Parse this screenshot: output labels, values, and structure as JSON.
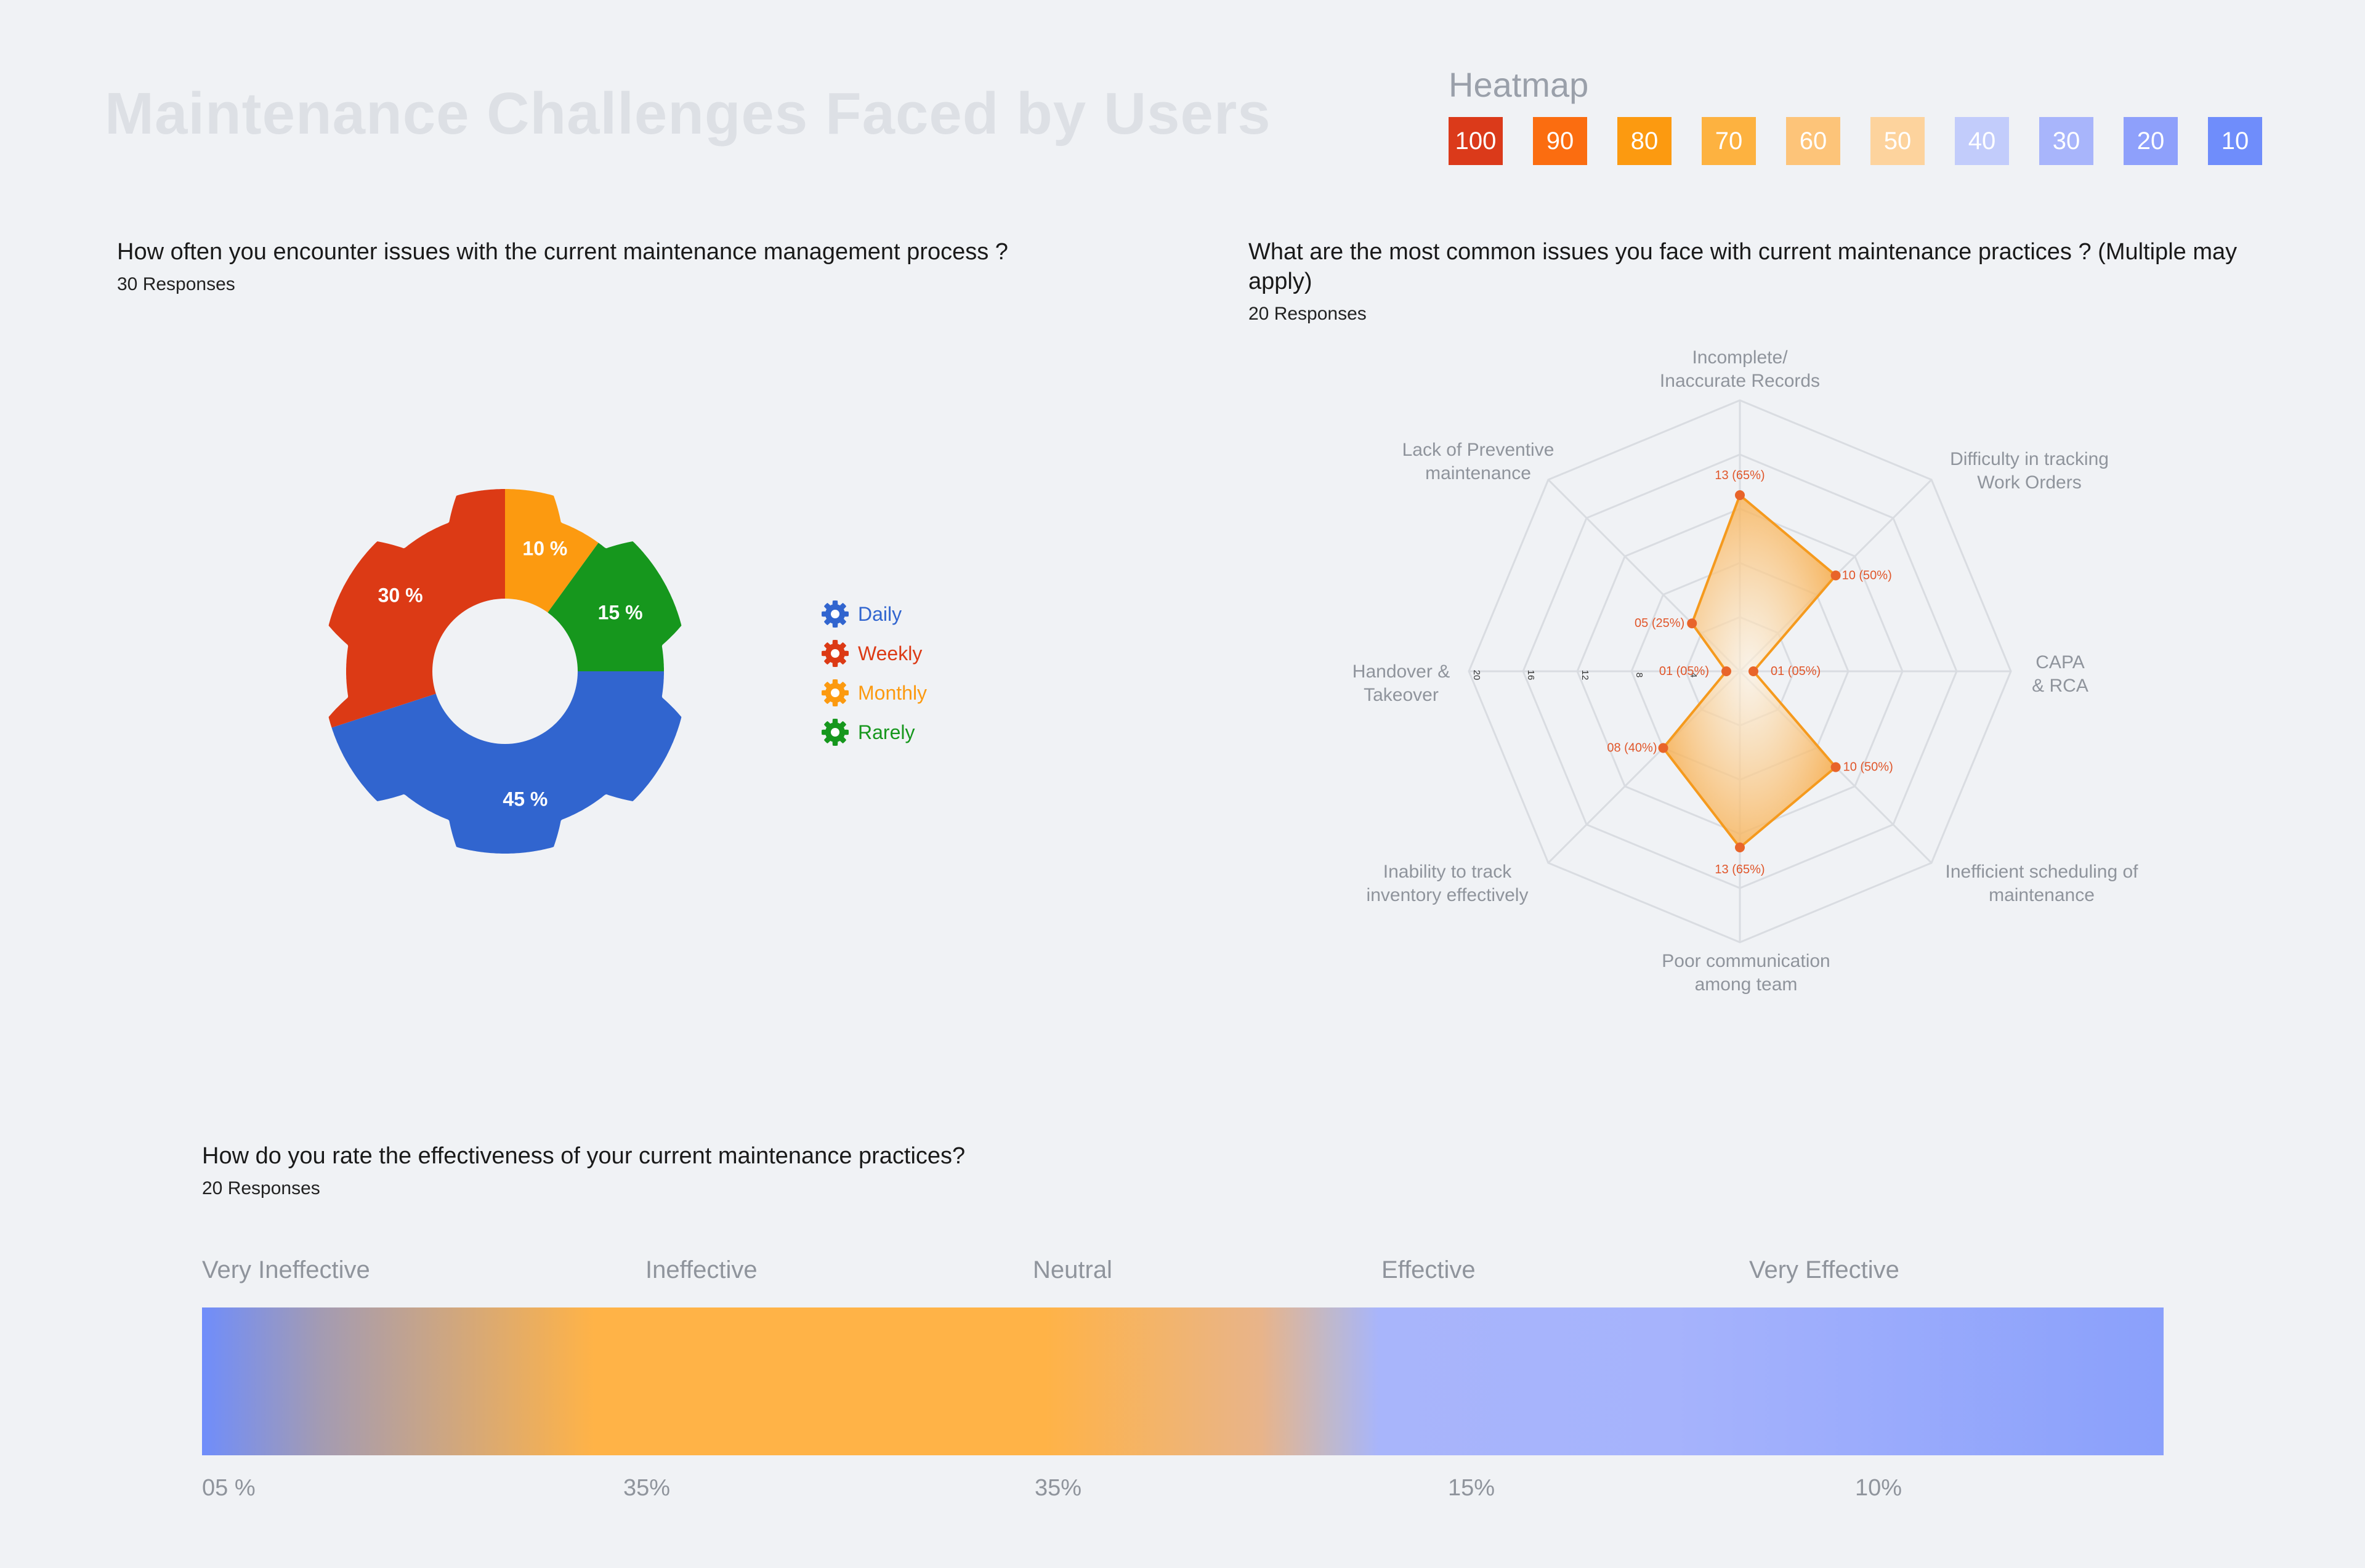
{
  "page": {
    "title": "Maintenance Challenges Faced by Users"
  },
  "heatmap": {
    "label": "Heatmap",
    "cells": [
      {
        "value": "100",
        "color": "#db3a1a"
      },
      {
        "value": "90",
        "color": "#fb6d10"
      },
      {
        "value": "80",
        "color": "#fc9a10"
      },
      {
        "value": "70",
        "color": "#fdb240"
      },
      {
        "value": "60",
        "color": "#fdc479"
      },
      {
        "value": "50",
        "color": "#fdd39d"
      },
      {
        "value": "40",
        "color": "#c2ccfb"
      },
      {
        "value": "30",
        "color": "#a8b5fb"
      },
      {
        "value": "20",
        "color": "#8ea0fb"
      },
      {
        "value": "10",
        "color": "#6f8dfb"
      }
    ]
  },
  "q1": {
    "title": "How often you encounter issues with the current maintenance management process ?",
    "responses": "30 Responses"
  },
  "q2": {
    "title": "What are the most common issues you face with current maintenance practices ? (Multiple may apply)",
    "responses": "20 Responses"
  },
  "q3": {
    "title": "How do you rate the effectiveness of your current maintenance practices?",
    "responses": "20 Responses"
  },
  "chart_data": [
    {
      "type": "pie",
      "style": "gear donut",
      "categories": [
        "Daily",
        "Weekly",
        "Monthly",
        "Rarely"
      ],
      "values": [
        45,
        30,
        10,
        15
      ],
      "labels": [
        "45 %",
        "30 %",
        "10 %",
        "15 %"
      ],
      "colors": [
        "#3165cf",
        "#dc3a15",
        "#fc9a10",
        "#16971d"
      ],
      "legend": "right"
    },
    {
      "type": "radar",
      "axes": [
        "Incomplete/ Inaccurate Records",
        "Difficulty in tracking Work Orders",
        "CAPA & RCA",
        "Inefficient scheduling of maintenance",
        "Poor communication among team",
        "Inability to track inventory effectively",
        "Handover & Takeover",
        "Lack of Preventive maintenance"
      ],
      "axis_label_lines": [
        [
          "Incomplete/",
          "Inaccurate Records"
        ],
        [
          "Difficulty in tracking",
          "Work Orders"
        ],
        [
          "CAPA",
          "&  RCA"
        ],
        [
          "Inefficient scheduling of",
          "maintenance"
        ],
        [
          "Poor communication",
          "among team"
        ],
        [
          "Inability to track",
          "inventory effectively"
        ],
        [
          "Handover &",
          "Takeover"
        ],
        [
          "Lack of Preventive",
          "maintenance"
        ]
      ],
      "values": [
        13,
        10,
        1,
        10,
        13,
        8,
        1,
        5
      ],
      "value_labels": [
        "13 (65%)",
        "10 (50%)",
        "01 (05%)",
        "10 (50%)",
        "13 (65%)",
        "08 (40%)",
        "01 (05%)",
        "05 (25%)"
      ],
      "rlim": [
        0,
        20
      ],
      "ticks": [
        "4",
        "8",
        "12",
        "16",
        "20"
      ],
      "color": "#f59a1e"
    },
    {
      "type": "gradient-scale",
      "categories": [
        "Very Ineffective",
        "Ineffective",
        "Neutral",
        "Effective",
        "Very Effective"
      ],
      "percent_labels": [
        "05 %",
        "35%",
        "35%",
        "15%",
        "10%"
      ],
      "values": [
        5,
        35,
        35,
        15,
        10
      ]
    }
  ]
}
